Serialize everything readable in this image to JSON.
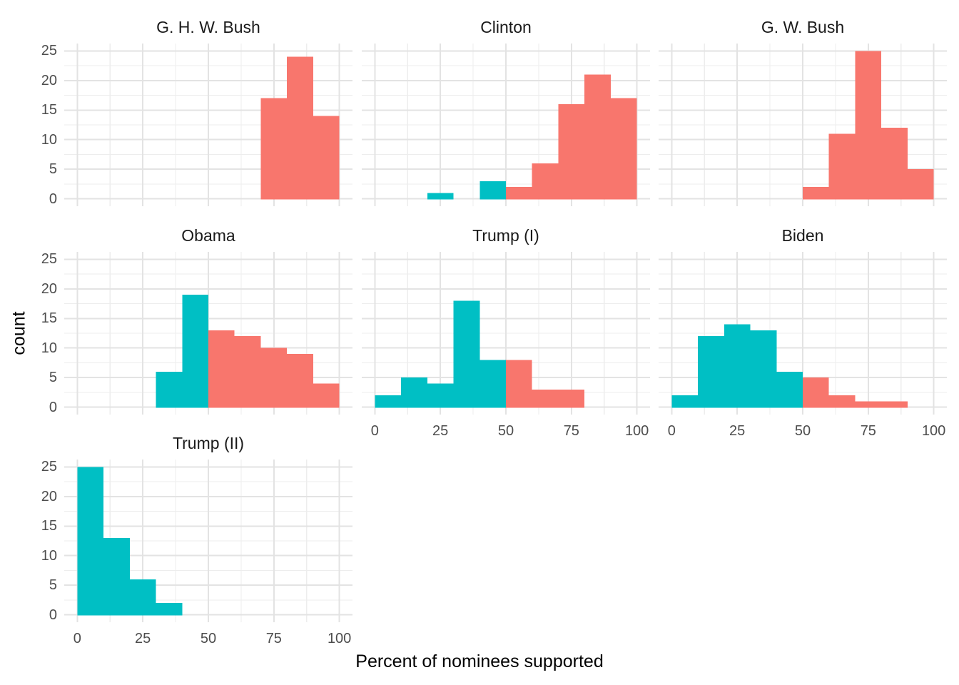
{
  "figure": {
    "background": "#ffffff",
    "x_axis_title": "Percent of nominees supported",
    "y_axis_title": "count"
  },
  "chart_data": {
    "type": "bar",
    "subtype": "faceted-histogram",
    "faceted_by": "president",
    "title": "",
    "xlabel": "Percent of nominees supported",
    "ylabel": "count",
    "xlim": [
      0,
      100
    ],
    "ylim": [
      0,
      25
    ],
    "x_ticks": [
      0,
      25,
      50,
      75,
      100
    ],
    "y_ticks": [
      0,
      5,
      10,
      15,
      20,
      25
    ],
    "x_minor_gridlines": [
      12.5,
      37.5,
      62.5,
      87.5
    ],
    "y_minor_gridlines": [
      2.5,
      7.5,
      12.5,
      17.5,
      22.5
    ],
    "binwidth": 10,
    "grid": "major+minor",
    "legend": "none",
    "colors": {
      "teal": "#00BFC4",
      "red": "#F8766D",
      "grid_major": "#E3E3E3",
      "grid_minor": "#EDEDED",
      "tick_text": "#4d4d4d",
      "title_text": "#1a1a1a"
    },
    "facets": [
      {
        "label": "G. H. W. Bush",
        "row": 0,
        "col": 0,
        "show_y_axis": true,
        "show_x_axis": false,
        "bins": [
          {
            "start": 70,
            "end": 80,
            "count": 17,
            "color": "red"
          },
          {
            "start": 80,
            "end": 90,
            "count": 24,
            "color": "red"
          },
          {
            "start": 90,
            "end": 100,
            "count": 14,
            "color": "red"
          }
        ]
      },
      {
        "label": "Clinton",
        "row": 0,
        "col": 1,
        "show_y_axis": false,
        "show_x_axis": false,
        "bins": [
          {
            "start": 20,
            "end": 30,
            "count": 1,
            "color": "teal"
          },
          {
            "start": 40,
            "end": 50,
            "count": 3,
            "color": "teal"
          },
          {
            "start": 50,
            "end": 60,
            "count": 2,
            "color": "red"
          },
          {
            "start": 60,
            "end": 70,
            "count": 6,
            "color": "red"
          },
          {
            "start": 70,
            "end": 80,
            "count": 16,
            "color": "red"
          },
          {
            "start": 80,
            "end": 90,
            "count": 21,
            "color": "red"
          },
          {
            "start": 90,
            "end": 100,
            "count": 17,
            "color": "red"
          }
        ]
      },
      {
        "label": "G. W. Bush",
        "row": 0,
        "col": 2,
        "show_y_axis": false,
        "show_x_axis": false,
        "bins": [
          {
            "start": 50,
            "end": 60,
            "count": 2,
            "color": "red"
          },
          {
            "start": 60,
            "end": 70,
            "count": 11,
            "color": "red"
          },
          {
            "start": 70,
            "end": 80,
            "count": 25,
            "color": "red"
          },
          {
            "start": 80,
            "end": 90,
            "count": 12,
            "color": "red"
          },
          {
            "start": 90,
            "end": 100,
            "count": 5,
            "color": "red"
          }
        ]
      },
      {
        "label": "Obama",
        "row": 1,
        "col": 0,
        "show_y_axis": true,
        "show_x_axis": false,
        "bins": [
          {
            "start": 30,
            "end": 40,
            "count": 6,
            "color": "teal"
          },
          {
            "start": 40,
            "end": 50,
            "count": 19,
            "color": "teal"
          },
          {
            "start": 50,
            "end": 60,
            "count": 13,
            "color": "red"
          },
          {
            "start": 60,
            "end": 70,
            "count": 12,
            "color": "red"
          },
          {
            "start": 70,
            "end": 80,
            "count": 10,
            "color": "red"
          },
          {
            "start": 80,
            "end": 90,
            "count": 9,
            "color": "red"
          },
          {
            "start": 90,
            "end": 100,
            "count": 4,
            "color": "red"
          }
        ]
      },
      {
        "label": "Trump (I)",
        "row": 1,
        "col": 1,
        "show_y_axis": false,
        "show_x_axis": true,
        "bins": [
          {
            "start": 0,
            "end": 10,
            "count": 2,
            "color": "teal"
          },
          {
            "start": 10,
            "end": 20,
            "count": 5,
            "color": "teal"
          },
          {
            "start": 20,
            "end": 30,
            "count": 4,
            "color": "teal"
          },
          {
            "start": 30,
            "end": 40,
            "count": 18,
            "color": "teal"
          },
          {
            "start": 40,
            "end": 50,
            "count": 8,
            "color": "teal"
          },
          {
            "start": 50,
            "end": 60,
            "count": 8,
            "color": "red"
          },
          {
            "start": 60,
            "end": 70,
            "count": 3,
            "color": "red"
          },
          {
            "start": 70,
            "end": 80,
            "count": 3,
            "color": "red"
          }
        ]
      },
      {
        "label": "Biden",
        "row": 1,
        "col": 2,
        "show_y_axis": false,
        "show_x_axis": true,
        "bins": [
          {
            "start": 0,
            "end": 10,
            "count": 2,
            "color": "teal"
          },
          {
            "start": 10,
            "end": 20,
            "count": 12,
            "color": "teal"
          },
          {
            "start": 20,
            "end": 30,
            "count": 14,
            "color": "teal"
          },
          {
            "start": 30,
            "end": 40,
            "count": 13,
            "color": "teal"
          },
          {
            "start": 40,
            "end": 50,
            "count": 6,
            "color": "teal"
          },
          {
            "start": 50,
            "end": 60,
            "count": 5,
            "color": "red"
          },
          {
            "start": 60,
            "end": 70,
            "count": 2,
            "color": "red"
          },
          {
            "start": 70,
            "end": 80,
            "count": 1,
            "color": "red"
          },
          {
            "start": 80,
            "end": 90,
            "count": 1,
            "color": "red"
          }
        ]
      },
      {
        "label": "Trump (II)",
        "row": 2,
        "col": 0,
        "show_y_axis": true,
        "show_x_axis": true,
        "bins": [
          {
            "start": 0,
            "end": 10,
            "count": 25,
            "color": "teal"
          },
          {
            "start": 10,
            "end": 20,
            "count": 13,
            "color": "teal"
          },
          {
            "start": 20,
            "end": 30,
            "count": 6,
            "color": "teal"
          },
          {
            "start": 30,
            "end": 40,
            "count": 2,
            "color": "teal"
          }
        ]
      }
    ]
  }
}
